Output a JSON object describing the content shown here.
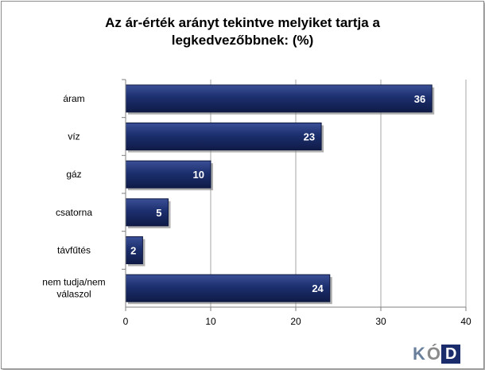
{
  "chart_data": {
    "type": "bar",
    "orientation": "horizontal",
    "title_lines": [
      "Az ár-érték arányt tekintve melyiket tartja a",
      "legkedvezőbbnek: (%)"
    ],
    "categories": [
      [
        "áram"
      ],
      [
        "víz"
      ],
      [
        "gáz"
      ],
      [
        "csatorna"
      ],
      [
        "távfűtés"
      ],
      [
        "nem tudja/nem",
        "válaszol"
      ]
    ],
    "values": [
      36,
      23,
      10,
      5,
      2,
      24
    ],
    "xlim": [
      0,
      40
    ],
    "xticks": [
      "0",
      "10",
      "20",
      "30",
      "40"
    ],
    "grid": true,
    "bar_color": "#1c2f6e",
    "label_color": "#ffffff"
  },
  "logo": {
    "k": "K",
    "o": "Ó",
    "d": "D"
  }
}
